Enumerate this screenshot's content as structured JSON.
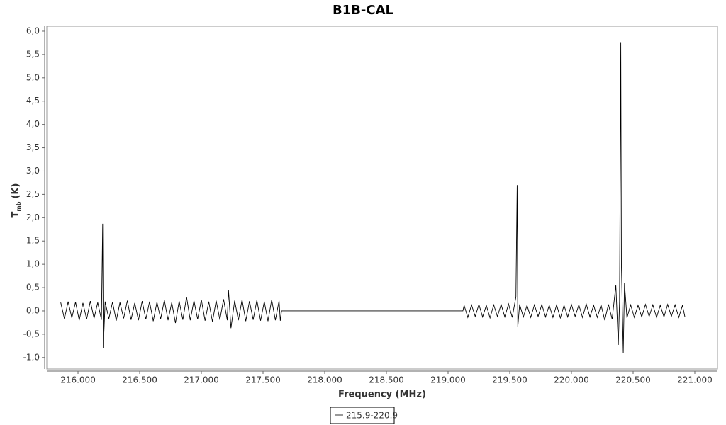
{
  "chart_data": {
    "type": "line",
    "title": "B1B-CAL",
    "x_label": "Frequency (MHz)",
    "y_label": {
      "main": "T",
      "sub": "mb",
      "unit": "(K)"
    },
    "x": [
      215.86,
      215.89,
      215.92,
      215.95,
      215.98,
      216.01,
      216.04,
      216.07,
      216.1,
      216.13,
      216.16,
      216.19,
      216.2,
      216.205,
      216.22,
      216.25,
      216.28,
      216.31,
      216.34,
      216.37,
      216.4,
      216.43,
      216.46,
      216.49,
      216.52,
      216.55,
      216.58,
      216.61,
      216.64,
      216.67,
      216.7,
      216.73,
      216.76,
      216.79,
      216.82,
      216.85,
      216.88,
      216.91,
      216.94,
      216.97,
      217,
      217.03,
      217.06,
      217.09,
      217.12,
      217.15,
      217.18,
      217.21,
      217.22,
      217.24,
      217.27,
      217.3,
      217.33,
      217.36,
      217.39,
      217.42,
      217.45,
      217.48,
      217.51,
      217.54,
      217.57,
      217.6,
      217.63,
      217.64,
      217.65,
      219.12,
      219.13,
      219.16,
      219.19,
      219.22,
      219.25,
      219.28,
      219.31,
      219.34,
      219.37,
      219.4,
      219.43,
      219.46,
      219.49,
      219.52,
      219.55,
      219.56,
      219.565,
      219.58,
      219.61,
      219.64,
      219.67,
      219.7,
      219.73,
      219.76,
      219.79,
      219.82,
      219.85,
      219.88,
      219.91,
      219.94,
      219.97,
      220,
      220.03,
      220.06,
      220.09,
      220.12,
      220.15,
      220.18,
      220.21,
      220.24,
      220.27,
      220.3,
      220.33,
      220.36,
      220.38,
      220.39,
      220.4,
      220.405,
      220.42,
      220.43,
      220.45,
      220.48,
      220.51,
      220.54,
      220.57,
      220.6,
      220.63,
      220.66,
      220.69,
      220.72,
      220.75,
      220.78,
      220.81,
      220.84,
      220.87,
      220.9,
      220.92
    ],
    "series": [
      {
        "name": "215.9-220.9",
        "color": "#000000",
        "values": [
          0.18,
          -0.17,
          0.2,
          -0.15,
          0.19,
          -0.2,
          0.17,
          -0.18,
          0.21,
          -0.16,
          0.18,
          -0.19,
          1.87,
          -0.8,
          0.2,
          -0.17,
          0.19,
          -0.21,
          0.18,
          -0.16,
          0.22,
          -0.19,
          0.17,
          -0.2,
          0.21,
          -0.18,
          0.2,
          -0.22,
          0.19,
          -0.17,
          0.23,
          -0.2,
          0.18,
          -0.26,
          0.21,
          -0.19,
          0.3,
          -0.2,
          0.22,
          -0.18,
          0.24,
          -0.21,
          0.2,
          -0.23,
          0.22,
          -0.19,
          0.25,
          -0.2,
          0.45,
          -0.37,
          0.22,
          -0.2,
          0.24,
          -0.22,
          0.21,
          -0.19,
          0.23,
          -0.21,
          0.2,
          -0.22,
          0.24,
          -0.2,
          0.22,
          -0.21,
          0,
          0,
          0.12,
          -0.14,
          0.13,
          -0.12,
          0.14,
          -0.13,
          0.12,
          -0.15,
          0.13,
          -0.12,
          0.14,
          -0.13,
          0.15,
          -0.14,
          0.3,
          2.7,
          -0.35,
          0.14,
          -0.13,
          0.12,
          -0.14,
          0.13,
          -0.12,
          0.14,
          -0.13,
          0.12,
          -0.14,
          0.13,
          -0.15,
          0.12,
          -0.13,
          0.14,
          -0.12,
          0.13,
          -0.14,
          0.15,
          -0.13,
          0.12,
          -0.14,
          0.13,
          -0.2,
          0.14,
          -0.18,
          0.55,
          -0.73,
          0.2,
          5.75,
          1.0,
          -0.9,
          0.6,
          -0.15,
          0.13,
          -0.14,
          0.12,
          -0.13,
          0.14,
          -0.12,
          0.13,
          -0.14,
          0.12,
          -0.13,
          0.14,
          -0.12,
          0.13,
          -0.14,
          0.12,
          -0.13
        ]
      }
    ],
    "xlim": [
      215.747,
      221.184
    ],
    "ylim": [
      -1.246,
      6.106
    ],
    "xticks": [
      {
        "value": 216,
        "label": "216.000"
      },
      {
        "value": 216.5,
        "label": "216.500"
      },
      {
        "value": 217,
        "label": "217.000"
      },
      {
        "value": 217.5,
        "label": "217.500"
      },
      {
        "value": 218,
        "label": "218.000"
      },
      {
        "value": 218.5,
        "label": "218.500"
      },
      {
        "value": 219,
        "label": "219.000"
      },
      {
        "value": 219.5,
        "label": "219.500"
      },
      {
        "value": 220,
        "label": "220.000"
      },
      {
        "value": 220.5,
        "label": "220.500"
      },
      {
        "value": 221,
        "label": "221.000"
      }
    ],
    "yticks": [
      {
        "value": -1,
        "label": "-1,0"
      },
      {
        "value": -0.5,
        "label": "-0,5"
      },
      {
        "value": 0,
        "label": "0,0"
      },
      {
        "value": 0.5,
        "label": "0,5"
      },
      {
        "value": 1,
        "label": "1,0"
      },
      {
        "value": 1.5,
        "label": "1,5"
      },
      {
        "value": 2,
        "label": "2,0"
      },
      {
        "value": 2.5,
        "label": "2,5"
      },
      {
        "value": 3,
        "label": "3,0"
      },
      {
        "value": 3.5,
        "label": "3,5"
      },
      {
        "value": 4,
        "label": "4,0"
      },
      {
        "value": 4.5,
        "label": "4,5"
      },
      {
        "value": 5,
        "label": "5,0"
      },
      {
        "value": 5.5,
        "label": "5,5"
      },
      {
        "value": 6,
        "label": "6,0"
      }
    ],
    "grid": false,
    "legend": "bottom"
  }
}
